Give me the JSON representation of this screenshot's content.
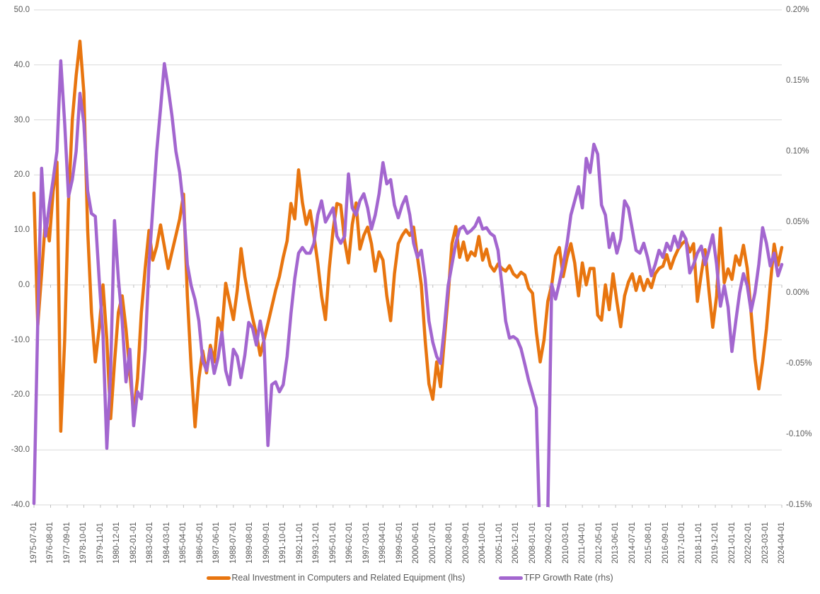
{
  "colors": {
    "investment_line": "#E8750F",
    "tfp_line": "#A366CF",
    "gridline": "#D9D9D9",
    "tick": "#BFBFBF",
    "axis_text": "#595959"
  },
  "legend": {
    "items": [
      {
        "label": "Real Investment in Computers and Related Equipment (lhs)",
        "color": "#E8750F"
      },
      {
        "label": "TFP Growth Rate (rhs)",
        "color": "#A366CF"
      }
    ]
  },
  "chart_data": {
    "type": "line",
    "title": "",
    "grid": "horizontal",
    "legend_position": "bottom",
    "left_axis": {
      "ticks": [
        "50.0",
        "40.0",
        "30.0",
        "20.0",
        "10.0",
        "0.0",
        "-10.0",
        "-20.0",
        "-30.0",
        "-40.0"
      ],
      "max": 50,
      "min": -40
    },
    "right_axis": {
      "ticks": [
        "0.20%",
        "0.15%",
        "0.10%",
        "0.05%",
        "0.00%",
        "-0.05%",
        "-0.10%",
        "-0.15%"
      ],
      "max": 0.2,
      "min": -0.15
    },
    "x_tick_labels": [
      "1975-07-01",
      "1976-08-01",
      "1977-09-01",
      "1978-10-01",
      "1979-11-01",
      "1980-12-01",
      "1982-01-01",
      "1983-02-01",
      "1984-03-01",
      "1985-04-01",
      "1986-05-01",
      "1987-06-01",
      "1988-07-01",
      "1989-08-01",
      "1990-09-01",
      "1991-10-01",
      "1992-11-01",
      "1993-12-01",
      "1995-01-01",
      "1996-02-01",
      "1997-03-01",
      "1998-04-01",
      "1999-05-01",
      "2000-06-01",
      "2001-07-01",
      "2002-08-01",
      "2003-09-01",
      "2004-10-01",
      "2005-11-01",
      "2006-12-01",
      "2008-01-01",
      "2009-02-01",
      "2010-03-01",
      "2011-04-01",
      "2012-05-01",
      "2013-06-01",
      "2014-07-01",
      "2015-08-01",
      "2016-09-01",
      "2017-10-01",
      "2018-11-01",
      "2019-12-01",
      "2021-01-01",
      "2022-02-01",
      "2023-03-01",
      "2024-04-01"
    ],
    "x_label_interval_months": 13,
    "x_months_span": 585,
    "x_start": "1975-07-01",
    "x_end": "2024-04-01",
    "sample_interval_months": 3,
    "series": [
      {
        "name": "Real Investment in Computers and Related Equipment (lhs)",
        "axis": "left",
        "color": "#E8750F",
        "values": [
          16.7,
          -7.3,
          2.0,
          12.0,
          8.0,
          17.0,
          22.3,
          -26.6,
          -10.0,
          15.0,
          30.0,
          38.0,
          44.3,
          35.0,
          10.0,
          -5.0,
          -14.0,
          -8.0,
          0.0,
          -10.0,
          -24.3,
          -14.2,
          -5.0,
          -2.0,
          -8.0,
          -16.0,
          -23.3,
          -17.0,
          -5.0,
          3.0,
          9.9,
          4.5,
          7.0,
          10.9,
          7.0,
          3.0,
          6.0,
          9.0,
          12.0,
          16.5,
          -2.0,
          -15.0,
          -25.8,
          -17.0,
          -12.0,
          -16.0,
          -11.0,
          -14.0,
          -6.0,
          -8.5,
          0.3,
          -3.0,
          -6.3,
          -1.0,
          6.6,
          1.5,
          -2.5,
          -6.0,
          -9.0,
          -12.8,
          -10.0,
          -7.0,
          -4.0,
          -1.0,
          1.5,
          5.0,
          8.0,
          14.8,
          12.0,
          20.9,
          15.0,
          11.0,
          13.5,
          9.0,
          4.0,
          -2.0,
          -6.3,
          3.0,
          10.0,
          14.8,
          14.5,
          8.0,
          4.0,
          11.0,
          14.9,
          6.5,
          9.0,
          10.5,
          7.5,
          2.5,
          6.0,
          4.5,
          -2.0,
          -6.5,
          2.0,
          7.5,
          9.0,
          10.0,
          9.0,
          10.5,
          5.0,
          0.0,
          -10.0,
          -18.0,
          -20.8,
          -14.0,
          -18.5,
          -10.0,
          -2.0,
          7.5,
          10.6,
          5.0,
          7.8,
          4.5,
          6.0,
          5.3,
          8.8,
          4.5,
          6.5,
          3.5,
          2.5,
          3.8,
          3.0,
          2.5,
          3.5,
          2.0,
          1.4,
          2.3,
          1.8,
          -0.6,
          -1.5,
          -8.6,
          -14.0,
          -10.0,
          -3.0,
          0.0,
          5.3,
          6.8,
          1.5,
          5.0,
          7.5,
          4.0,
          -2.0,
          4.0,
          0.0,
          3.0,
          3.0,
          -5.5,
          -6.4,
          0.0,
          -4.5,
          2.0,
          -3.0,
          -7.6,
          -2.0,
          0.5,
          2.0,
          -1.0,
          1.5,
          -1.0,
          1.0,
          -0.5,
          2.0,
          3.0,
          3.4,
          5.5,
          3.0,
          5.0,
          6.5,
          7.5,
          8.1,
          6.0,
          7.5,
          -3.0,
          2.0,
          6.4,
          -1.0,
          -7.7,
          -2.0,
          10.3,
          0.4,
          2.9,
          1.0,
          5.3,
          3.6,
          7.2,
          3.0,
          -5.0,
          -13.4,
          -18.9,
          -14.0,
          -8.0,
          0.0,
          7.4,
          3.6,
          6.8
        ]
      },
      {
        "name": "TFP Growth Rate (rhs)",
        "axis": "right",
        "color": "#A366CF",
        "values": [
          -0.149,
          -0.02,
          0.088,
          0.04,
          0.062,
          0.08,
          0.1,
          0.164,
          0.12,
          0.068,
          0.08,
          0.1,
          0.141,
          0.12,
          0.072,
          0.056,
          0.054,
          0.01,
          -0.03,
          -0.11,
          -0.055,
          0.051,
          0.01,
          -0.02,
          -0.063,
          -0.04,
          -0.094,
          -0.07,
          -0.075,
          -0.04,
          0.02,
          0.06,
          0.1,
          0.13,
          0.162,
          0.145,
          0.125,
          0.1,
          0.085,
          0.06,
          0.02,
          0.005,
          -0.005,
          -0.02,
          -0.048,
          -0.055,
          -0.04,
          -0.057,
          -0.046,
          -0.028,
          -0.055,
          -0.065,
          -0.04,
          -0.045,
          -0.06,
          -0.044,
          -0.021,
          -0.025,
          -0.037,
          -0.02,
          -0.035,
          -0.108,
          -0.065,
          -0.063,
          -0.07,
          -0.065,
          -0.045,
          -0.015,
          0.01,
          0.028,
          0.032,
          0.028,
          0.028,
          0.035,
          0.055,
          0.065,
          0.05,
          0.055,
          0.06,
          0.04,
          0.035,
          0.04,
          0.084,
          0.06,
          0.055,
          0.065,
          0.07,
          0.06,
          0.045,
          0.055,
          0.07,
          0.092,
          0.077,
          0.08,
          0.062,
          0.053,
          0.062,
          0.068,
          0.055,
          0.035,
          0.025,
          0.03,
          0.01,
          -0.02,
          -0.035,
          -0.045,
          -0.05,
          -0.025,
          0.005,
          0.02,
          0.035,
          0.045,
          0.047,
          0.042,
          0.044,
          0.047,
          0.053,
          0.045,
          0.046,
          0.042,
          0.04,
          0.03,
          0.006,
          -0.02,
          -0.032,
          -0.031,
          -0.033,
          -0.0395,
          -0.0505,
          -0.062,
          -0.0715,
          -0.0815,
          -0.18,
          -0.19,
          -0.155,
          0.006,
          -0.0045,
          0.007,
          0.02,
          0.035,
          0.055,
          0.065,
          0.075,
          0.06,
          0.095,
          0.085,
          0.105,
          0.098,
          0.062,
          0.055,
          0.032,
          0.042,
          0.028,
          0.038,
          0.065,
          0.06,
          0.045,
          0.03,
          0.028,
          0.035,
          0.025,
          0.012,
          0.02,
          0.03,
          0.025,
          0.035,
          0.03,
          0.04,
          0.032,
          0.043,
          0.038,
          0.014,
          0.02,
          0.028,
          0.033,
          0.02,
          0.03,
          0.041,
          0.02,
          -0.0095,
          0.005,
          -0.01,
          -0.0415,
          -0.02,
          0.0,
          0.0135,
          0.005,
          -0.013,
          0.0,
          0.02,
          0.046,
          0.035,
          0.019,
          0.028,
          0.012,
          0.02
        ]
      }
    ]
  }
}
